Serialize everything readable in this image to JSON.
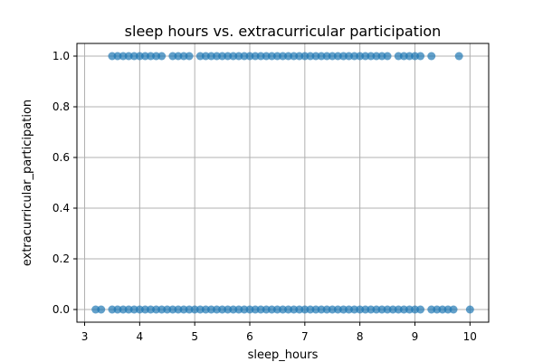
{
  "chart_data": {
    "type": "scatter",
    "title": "sleep hours vs. extracurricular participation",
    "xlabel": "sleep_hours",
    "ylabel": "extracurricular_participation",
    "xlim": [
      2.86,
      10.34
    ],
    "ylim": [
      -0.05,
      1.05
    ],
    "xticks": [
      3,
      4,
      5,
      6,
      7,
      8,
      9,
      10
    ],
    "yticks": [
      0.0,
      0.2,
      0.4,
      0.6,
      0.8,
      1.0
    ],
    "xtick_labels": [
      "3",
      "4",
      "5",
      "6",
      "7",
      "8",
      "9",
      "10"
    ],
    "ytick_labels": [
      "0.0",
      "0.2",
      "0.4",
      "0.6",
      "0.8",
      "1.0"
    ],
    "grid": true,
    "marker_color": "#1f77b4",
    "points": [
      {
        "x": 3.5,
        "y": 1
      },
      {
        "x": 3.6,
        "y": 1
      },
      {
        "x": 3.7,
        "y": 1
      },
      {
        "x": 3.8,
        "y": 1
      },
      {
        "x": 3.9,
        "y": 1
      },
      {
        "x": 4.0,
        "y": 1
      },
      {
        "x": 4.1,
        "y": 1
      },
      {
        "x": 4.2,
        "y": 1
      },
      {
        "x": 4.3,
        "y": 1
      },
      {
        "x": 4.4,
        "y": 1
      },
      {
        "x": 4.6,
        "y": 1
      },
      {
        "x": 4.7,
        "y": 1
      },
      {
        "x": 4.8,
        "y": 1
      },
      {
        "x": 4.9,
        "y": 1
      },
      {
        "x": 5.1,
        "y": 1
      },
      {
        "x": 5.2,
        "y": 1
      },
      {
        "x": 5.3,
        "y": 1
      },
      {
        "x": 5.4,
        "y": 1
      },
      {
        "x": 5.5,
        "y": 1
      },
      {
        "x": 5.6,
        "y": 1
      },
      {
        "x": 5.7,
        "y": 1
      },
      {
        "x": 5.8,
        "y": 1
      },
      {
        "x": 5.9,
        "y": 1
      },
      {
        "x": 6.0,
        "y": 1
      },
      {
        "x": 6.1,
        "y": 1
      },
      {
        "x": 6.2,
        "y": 1
      },
      {
        "x": 6.3,
        "y": 1
      },
      {
        "x": 6.4,
        "y": 1
      },
      {
        "x": 6.5,
        "y": 1
      },
      {
        "x": 6.6,
        "y": 1
      },
      {
        "x": 6.7,
        "y": 1
      },
      {
        "x": 6.8,
        "y": 1
      },
      {
        "x": 6.9,
        "y": 1
      },
      {
        "x": 7.0,
        "y": 1
      },
      {
        "x": 7.1,
        "y": 1
      },
      {
        "x": 7.2,
        "y": 1
      },
      {
        "x": 7.3,
        "y": 1
      },
      {
        "x": 7.4,
        "y": 1
      },
      {
        "x": 7.5,
        "y": 1
      },
      {
        "x": 7.6,
        "y": 1
      },
      {
        "x": 7.7,
        "y": 1
      },
      {
        "x": 7.8,
        "y": 1
      },
      {
        "x": 7.9,
        "y": 1
      },
      {
        "x": 8.0,
        "y": 1
      },
      {
        "x": 8.1,
        "y": 1
      },
      {
        "x": 8.2,
        "y": 1
      },
      {
        "x": 8.3,
        "y": 1
      },
      {
        "x": 8.4,
        "y": 1
      },
      {
        "x": 8.5,
        "y": 1
      },
      {
        "x": 8.7,
        "y": 1
      },
      {
        "x": 8.8,
        "y": 1
      },
      {
        "x": 8.9,
        "y": 1
      },
      {
        "x": 9.0,
        "y": 1
      },
      {
        "x": 9.1,
        "y": 1
      },
      {
        "x": 9.3,
        "y": 1
      },
      {
        "x": 9.8,
        "y": 1
      },
      {
        "x": 3.2,
        "y": 0
      },
      {
        "x": 3.3,
        "y": 0
      },
      {
        "x": 3.5,
        "y": 0
      },
      {
        "x": 3.6,
        "y": 0
      },
      {
        "x": 3.7,
        "y": 0
      },
      {
        "x": 3.8,
        "y": 0
      },
      {
        "x": 3.9,
        "y": 0
      },
      {
        "x": 4.0,
        "y": 0
      },
      {
        "x": 4.1,
        "y": 0
      },
      {
        "x": 4.2,
        "y": 0
      },
      {
        "x": 4.3,
        "y": 0
      },
      {
        "x": 4.4,
        "y": 0
      },
      {
        "x": 4.5,
        "y": 0
      },
      {
        "x": 4.6,
        "y": 0
      },
      {
        "x": 4.7,
        "y": 0
      },
      {
        "x": 4.8,
        "y": 0
      },
      {
        "x": 4.9,
        "y": 0
      },
      {
        "x": 5.0,
        "y": 0
      },
      {
        "x": 5.1,
        "y": 0
      },
      {
        "x": 5.2,
        "y": 0
      },
      {
        "x": 5.3,
        "y": 0
      },
      {
        "x": 5.4,
        "y": 0
      },
      {
        "x": 5.5,
        "y": 0
      },
      {
        "x": 5.6,
        "y": 0
      },
      {
        "x": 5.7,
        "y": 0
      },
      {
        "x": 5.8,
        "y": 0
      },
      {
        "x": 5.9,
        "y": 0
      },
      {
        "x": 6.0,
        "y": 0
      },
      {
        "x": 6.1,
        "y": 0
      },
      {
        "x": 6.2,
        "y": 0
      },
      {
        "x": 6.3,
        "y": 0
      },
      {
        "x": 6.4,
        "y": 0
      },
      {
        "x": 6.5,
        "y": 0
      },
      {
        "x": 6.6,
        "y": 0
      },
      {
        "x": 6.7,
        "y": 0
      },
      {
        "x": 6.8,
        "y": 0
      },
      {
        "x": 6.9,
        "y": 0
      },
      {
        "x": 7.0,
        "y": 0
      },
      {
        "x": 7.1,
        "y": 0
      },
      {
        "x": 7.2,
        "y": 0
      },
      {
        "x": 7.3,
        "y": 0
      },
      {
        "x": 7.4,
        "y": 0
      },
      {
        "x": 7.5,
        "y": 0
      },
      {
        "x": 7.6,
        "y": 0
      },
      {
        "x": 7.7,
        "y": 0
      },
      {
        "x": 7.8,
        "y": 0
      },
      {
        "x": 7.9,
        "y": 0
      },
      {
        "x": 8.0,
        "y": 0
      },
      {
        "x": 8.1,
        "y": 0
      },
      {
        "x": 8.2,
        "y": 0
      },
      {
        "x": 8.3,
        "y": 0
      },
      {
        "x": 8.4,
        "y": 0
      },
      {
        "x": 8.5,
        "y": 0
      },
      {
        "x": 8.6,
        "y": 0
      },
      {
        "x": 8.7,
        "y": 0
      },
      {
        "x": 8.8,
        "y": 0
      },
      {
        "x": 8.9,
        "y": 0
      },
      {
        "x": 9.0,
        "y": 0
      },
      {
        "x": 9.1,
        "y": 0
      },
      {
        "x": 9.3,
        "y": 0
      },
      {
        "x": 9.4,
        "y": 0
      },
      {
        "x": 9.5,
        "y": 0
      },
      {
        "x": 9.6,
        "y": 0
      },
      {
        "x": 9.7,
        "y": 0
      },
      {
        "x": 10.0,
        "y": 0
      }
    ]
  }
}
